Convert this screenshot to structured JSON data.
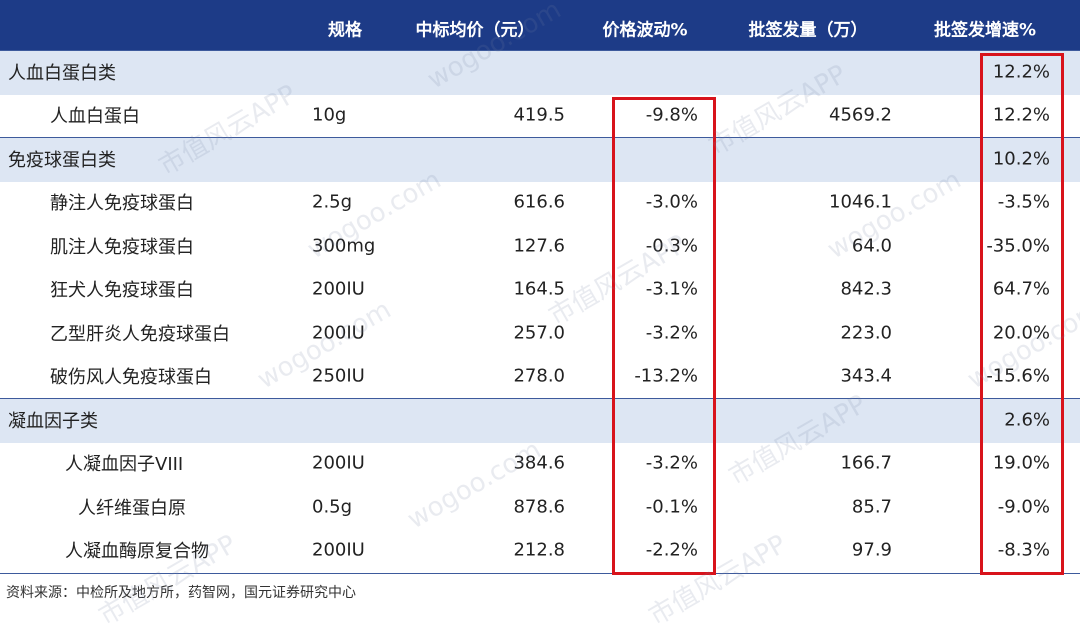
{
  "table": {
    "header": [
      "规格",
      "中标均价（元）",
      "价格波动%",
      "批签发量（万）",
      "批签发增速%"
    ],
    "rows": [
      {
        "name": "人血白蛋白类",
        "growth": "12.2%"
      },
      {
        "name": "人血白蛋白",
        "spec": "10g",
        "price": "419.5",
        "change": "-9.8%",
        "volume": "4569.2",
        "growth": "12.2%"
      },
      {
        "name": "免疫球蛋白类",
        "growth": "10.2%"
      },
      {
        "name": "静注人免疫球蛋白",
        "spec": "2.5g",
        "price": "616.6",
        "change": "-3.0%",
        "volume": "1046.1",
        "growth": "-3.5%"
      },
      {
        "name": "肌注人免疫球蛋白",
        "spec": "300mg",
        "price": "127.6",
        "change": "-0.3%",
        "volume": "64.0",
        "growth": "-35.0%"
      },
      {
        "name": "狂犬人免疫球蛋白",
        "spec": "200IU",
        "price": "164.5",
        "change": "-3.1%",
        "volume": "842.3",
        "growth": "64.7%"
      },
      {
        "name": "乙型肝炎人免疫球蛋白",
        "spec": "200IU",
        "price": "257.0",
        "change": "-3.2%",
        "volume": "223.0",
        "growth": "20.0%"
      },
      {
        "name": "破伤风人免疫球蛋白",
        "spec": "250IU",
        "price": "278.0",
        "change": "-13.2%",
        "volume": "343.4",
        "growth": "-15.6%"
      },
      {
        "name": "凝血因子类",
        "growth": "2.6%"
      },
      {
        "name": "人凝血因子VIII",
        "spec": "200IU",
        "price": "384.6",
        "change": "-3.2%",
        "volume": "166.7",
        "growth": "19.0%"
      },
      {
        "name": "人纤维蛋白原",
        "spec": "0.5g",
        "price": "878.6",
        "change": "-0.1%",
        "volume": "85.7",
        "growth": "-9.0%"
      },
      {
        "name": "人凝血酶原复合物",
        "spec": "200IU",
        "price": "212.8",
        "change": "-2.2%",
        "volume": "97.9",
        "growth": "-8.3%"
      }
    ]
  },
  "source": "资料来源：中检所及地方所，药智网，国元证券研究中心",
  "watermarks": [
    "市值风云APP",
    "wogoo.com"
  ]
}
